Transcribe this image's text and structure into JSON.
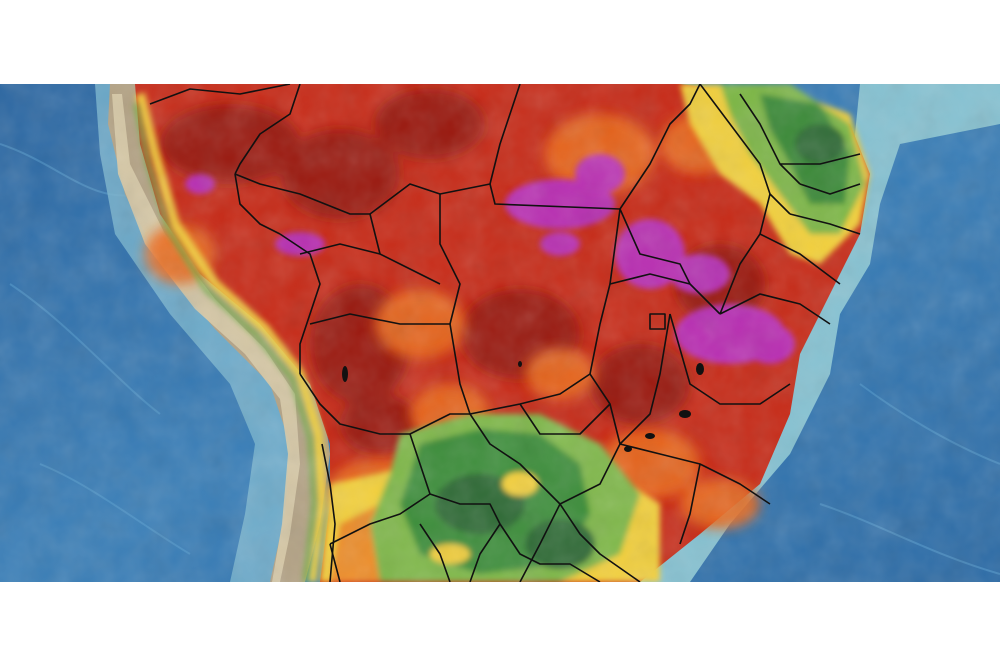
{
  "map": {
    "kind": "weather-anomaly-map",
    "region": "South America",
    "labels_visible": false,
    "colors": {
      "ocean_deep": "#2a6aa6",
      "ocean_mid": "#3d86bf",
      "ocean_shelf": "#8fc9d3",
      "andes_land": "#b8a88a",
      "coast_strip": "#d7c9a8",
      "heat_magenta": "#b32eb8",
      "heat_darkred": "#9c1a12",
      "heat_red": "#d1331b",
      "heat_orange": "#ec6a1f",
      "heat_yellow": "#f4d03a",
      "mild_lightgreen": "#7fb848",
      "mild_green": "#3f8f3a",
      "mild_darkgreen": "#2f6a36",
      "border_line": "#111111"
    }
  }
}
